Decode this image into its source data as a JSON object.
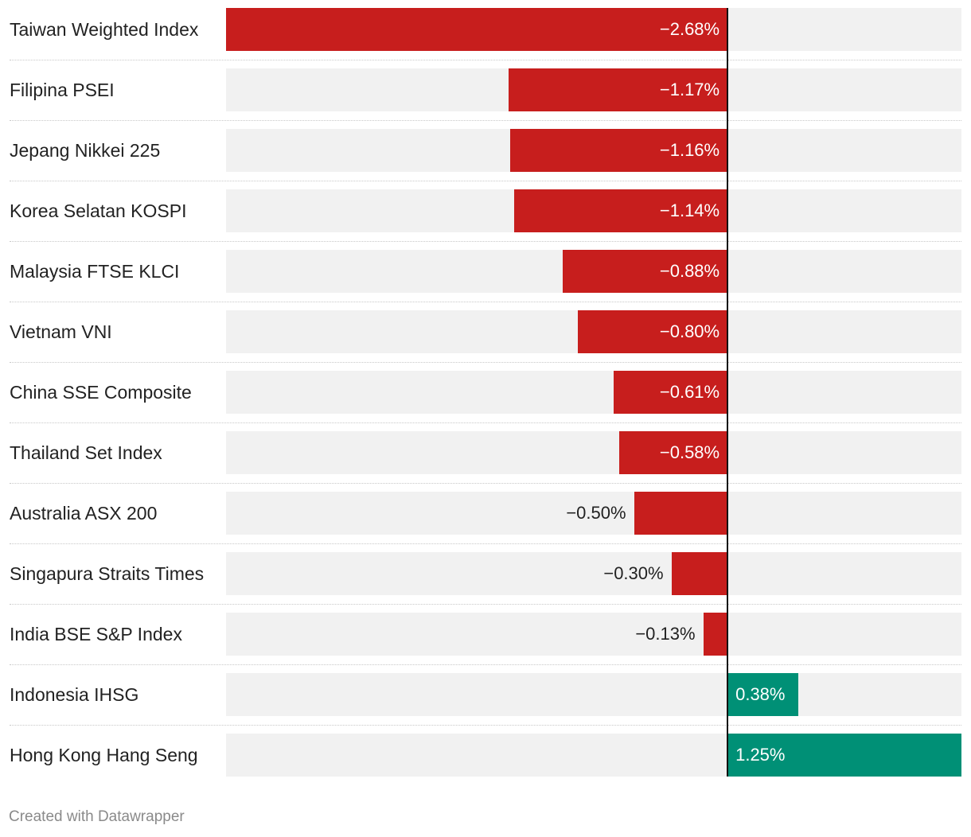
{
  "chart_data": {
    "type": "bar",
    "orientation": "horizontal",
    "categories": [
      "Taiwan Weighted Index",
      "Filipina PSEI",
      "Jepang Nikkei 225",
      "Korea Selatan KOSPI",
      "Malaysia FTSE KLCI",
      "Vietnam VNI",
      "China SSE Composite",
      "Thailand Set Index",
      "Australia ASX 200",
      "Singapura Straits Times",
      "India BSE S&P Index",
      "Indonesia IHSG",
      "Hong Kong Hang Seng"
    ],
    "values": [
      -2.68,
      -1.17,
      -1.16,
      -1.14,
      -0.88,
      -0.8,
      -0.61,
      -0.58,
      -0.5,
      -0.3,
      -0.13,
      0.38,
      1.25
    ],
    "value_labels": [
      "−2.68%",
      "−1.17%",
      "−1.16%",
      "−1.14%",
      "−0.88%",
      "−0.80%",
      "−0.61%",
      "−0.58%",
      "−0.50%",
      "−0.30%",
      "−0.13%",
      "0.38%",
      "1.25%"
    ],
    "xlim": [
      -2.68,
      1.25
    ],
    "colors": {
      "negative": "#c71e1d",
      "positive": "#009076",
      "track": "#f1f1f1",
      "zero_line": "#111111"
    },
    "title": "",
    "xlabel": "",
    "ylabel": ""
  },
  "footer": {
    "credit": "Created with Datawrapper"
  }
}
